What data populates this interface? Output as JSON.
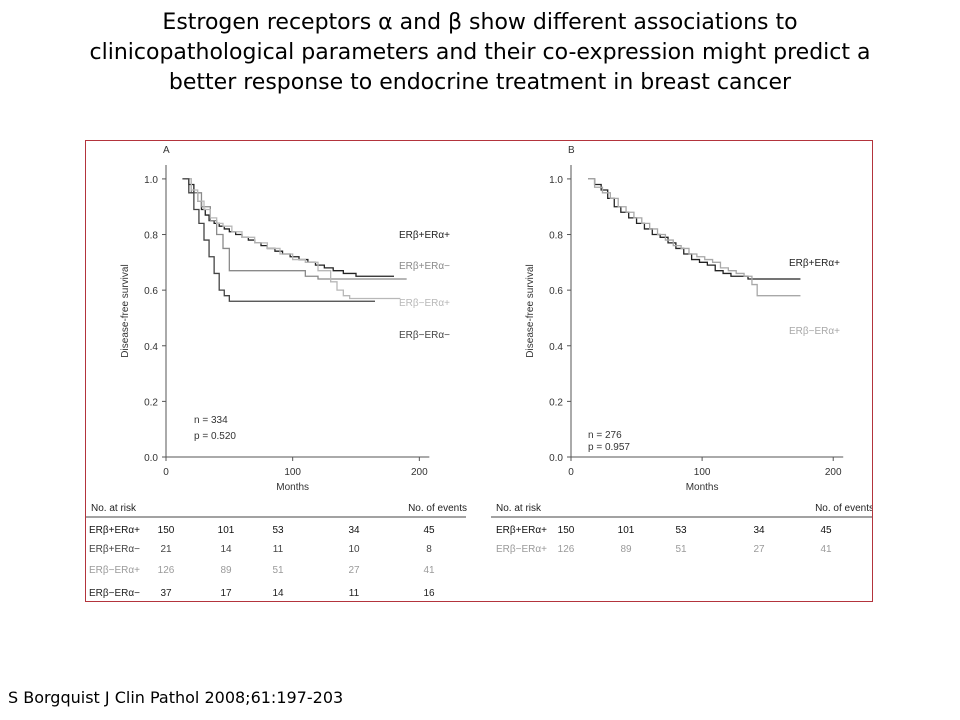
{
  "title": {
    "line1": "Estrogen receptors α and β show different associations to",
    "line2": "clinicopathological parameters and their co-expression might predict a",
    "line3": "better response to endocrine treatment in breast cancer"
  },
  "citation": "S Borgquist J Clin Pathol 2008;61:197-203",
  "figure_border_color": "#b3343c",
  "chart_data": [
    {
      "type": "line",
      "panel_label": "A",
      "xlabel": "Months",
      "ylabel": "Disease-free survival",
      "xlim": [
        0,
        225
      ],
      "ylim": [
        0,
        1.05
      ],
      "xticks": [
        0,
        100,
        200
      ],
      "yticks": [
        0.0,
        0.2,
        0.4,
        0.6,
        0.8,
        1.0
      ],
      "ytick_labels": [
        "0.0",
        "0.2",
        "0.4",
        "0.6",
        "0.8",
        "1.0"
      ],
      "stats": [
        "n = 334",
        "p = 0.520"
      ],
      "series": [
        {
          "name": "ERβ+ERα+",
          "color": "#222222",
          "x": [
            13,
            18,
            22,
            25,
            28,
            31,
            34,
            38,
            42,
            46,
            50,
            55,
            60,
            65,
            70,
            75,
            80,
            86,
            92,
            98,
            105,
            112,
            118,
            125,
            132,
            140,
            150,
            160,
            170,
            180
          ],
          "y": [
            1.0,
            0.98,
            0.95,
            0.92,
            0.89,
            0.87,
            0.85,
            0.84,
            0.83,
            0.82,
            0.81,
            0.8,
            0.79,
            0.78,
            0.77,
            0.76,
            0.75,
            0.74,
            0.73,
            0.72,
            0.71,
            0.7,
            0.69,
            0.68,
            0.67,
            0.66,
            0.65,
            0.65,
            0.65,
            0.65
          ]
        },
        {
          "name": "ERβ+ERα−",
          "color": "#8a8a8a",
          "x": [
            13,
            20,
            28,
            35,
            40,
            45,
            50,
            100,
            110,
            120,
            140,
            190
          ],
          "y": [
            1.0,
            0.95,
            0.9,
            0.85,
            0.8,
            0.75,
            0.67,
            0.67,
            0.65,
            0.64,
            0.64,
            0.64
          ]
        },
        {
          "name": "ERβ−ERα+",
          "color": "#b8b8b8",
          "x": [
            13,
            20,
            25,
            30,
            35,
            40,
            45,
            52,
            60,
            70,
            80,
            90,
            100,
            110,
            120,
            130,
            135,
            140,
            145,
            150,
            160,
            170,
            185
          ],
          "y": [
            1.0,
            0.96,
            0.92,
            0.89,
            0.86,
            0.84,
            0.83,
            0.81,
            0.79,
            0.77,
            0.75,
            0.73,
            0.71,
            0.7,
            0.67,
            0.63,
            0.6,
            0.58,
            0.57,
            0.57,
            0.57,
            0.57,
            0.57
          ]
        },
        {
          "name": "ERβ−ERα−",
          "color": "#444444",
          "x": [
            13,
            18,
            22,
            26,
            30,
            34,
            38,
            42,
            46,
            50,
            60,
            75,
            90,
            110,
            130,
            150,
            165
          ],
          "y": [
            1.0,
            0.95,
            0.89,
            0.84,
            0.78,
            0.72,
            0.66,
            0.6,
            0.58,
            0.56,
            0.56,
            0.56,
            0.56,
            0.56,
            0.56,
            0.56,
            0.56
          ]
        }
      ],
      "risk_table": {
        "header_left": "No. at risk",
        "header_right": "No. of events",
        "rows": [
          {
            "label": "ERβ+ERα+",
            "counts": [
              "150",
              "101",
              "53",
              "34"
            ],
            "events": "45",
            "color": "#111111"
          },
          {
            "label": "ERβ+ERα−",
            "counts": [
              "21",
              "14",
              "11",
              "10"
            ],
            "events": "8",
            "color": "#444444"
          },
          {
            "label": "ERβ−ERα+",
            "counts": [
              "126",
              "89",
              "51",
              "27"
            ],
            "events": "41",
            "color": "#9a9a9a"
          },
          {
            "label": "ERβ−ERα−",
            "counts": [
              "37",
              "17",
              "14",
              "11"
            ],
            "events": "16",
            "color": "#222222"
          }
        ]
      }
    },
    {
      "type": "line",
      "panel_label": "B",
      "xlabel": "Months",
      "ylabel": "Disease-free survival",
      "xlim": [
        0,
        225
      ],
      "ylim": [
        0,
        1.05
      ],
      "xticks": [
        0,
        100,
        200
      ],
      "yticks": [
        0.0,
        0.2,
        0.4,
        0.6,
        0.8,
        1.0
      ],
      "ytick_labels": [
        "0.0",
        "0.2",
        "0.4",
        "0.6",
        "0.8",
        "1.0"
      ],
      "stats": [
        "n = 276",
        "p = 0.957"
      ],
      "series": [
        {
          "name": "ERβ+ERα+",
          "color": "#222222",
          "x": [
            13,
            18,
            23,
            28,
            33,
            38,
            44,
            50,
            56,
            62,
            68,
            74,
            80,
            86,
            92,
            98,
            104,
            110,
            116,
            122,
            128,
            135,
            145,
            160,
            175
          ],
          "y": [
            1.0,
            0.98,
            0.96,
            0.93,
            0.9,
            0.88,
            0.86,
            0.84,
            0.82,
            0.8,
            0.79,
            0.77,
            0.75,
            0.73,
            0.71,
            0.7,
            0.69,
            0.67,
            0.66,
            0.65,
            0.65,
            0.64,
            0.64,
            0.64,
            0.64
          ]
        },
        {
          "name": "ERβ−ERα+",
          "color": "#a8a8a8",
          "x": [
            13,
            18,
            24,
            30,
            36,
            42,
            48,
            54,
            60,
            66,
            72,
            78,
            84,
            90,
            96,
            102,
            108,
            114,
            120,
            126,
            132,
            138,
            142,
            150,
            160,
            175
          ],
          "y": [
            1.0,
            0.97,
            0.95,
            0.93,
            0.9,
            0.88,
            0.86,
            0.84,
            0.82,
            0.8,
            0.78,
            0.76,
            0.75,
            0.73,
            0.72,
            0.71,
            0.7,
            0.68,
            0.67,
            0.66,
            0.65,
            0.62,
            0.58,
            0.58,
            0.58,
            0.58
          ]
        }
      ],
      "risk_table": {
        "header_left": "No. at risk",
        "header_right": "No. of events",
        "rows": [
          {
            "label": "ERβ+ERα+",
            "counts": [
              "150",
              "101",
              "53",
              "34"
            ],
            "events": "45",
            "color": "#111111"
          },
          {
            "label": "ERβ−ERα+",
            "counts": [
              "126",
              "89",
              "51",
              "27"
            ],
            "events": "41",
            "color": "#9a9a9a"
          }
        ]
      }
    }
  ]
}
